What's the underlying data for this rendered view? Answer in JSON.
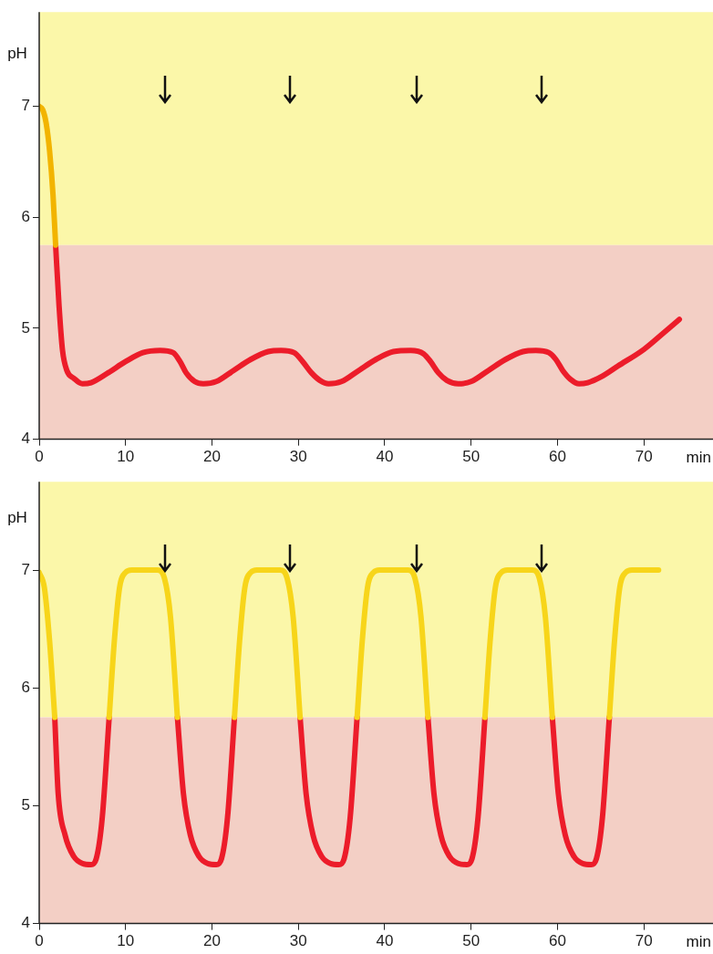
{
  "chart_data": [
    {
      "type": "line",
      "xlabel": "min",
      "ylabel": "pH",
      "xlim": [
        0,
        78
      ],
      "xticks": [
        0,
        10,
        20,
        30,
        40,
        50,
        60,
        70
      ],
      "ylim": [
        4,
        7.85
      ],
      "yticks": [
        4,
        5,
        6,
        7
      ],
      "grid": false,
      "legend": false,
      "marker": "none",
      "line_style": "solid",
      "bands": [
        {
          "axis": "y",
          "from": 5.75,
          "to": 7.85,
          "color": "#fbf7a9"
        },
        {
          "axis": "y",
          "from": 4,
          "to": 5.75,
          "color": "#f3cfc5"
        }
      ],
      "x": [
        0,
        0.4,
        0.8,
        1.2,
        1.6,
        1.9,
        2.3,
        2.7,
        3.2,
        4,
        5,
        6,
        8,
        10,
        12,
        14,
        15.5,
        16.3,
        17,
        18,
        19,
        20.5,
        22.5,
        24.5,
        26.5,
        28,
        29.5,
        30.5,
        31.5,
        32.5,
        33.5,
        35,
        37,
        39,
        41,
        43,
        44.5,
        45.3,
        46.2,
        47.2,
        48.5,
        50,
        52,
        54,
        56,
        57.5,
        59,
        59.8,
        60.6,
        61.5,
        62.5,
        63.5,
        65,
        67,
        70,
        72,
        74.1
      ],
      "series": [
        {
          "color": "#f2b400",
          "values": [
            7.0,
            6.97,
            6.85,
            6.6,
            6.2,
            5.75,
            null,
            null,
            null,
            null,
            null,
            null,
            null,
            null,
            null,
            null,
            null,
            null,
            null,
            null,
            null,
            null,
            null,
            null,
            null,
            null,
            null,
            null,
            null,
            null,
            null,
            null,
            null,
            null,
            null,
            null,
            null,
            null,
            null,
            null,
            null,
            null,
            null,
            null,
            null,
            null,
            null,
            null,
            null,
            null,
            null,
            null,
            null,
            null,
            null,
            null,
            null
          ]
        },
        {
          "color": "#ec1c2a",
          "values": [
            null,
            null,
            null,
            null,
            null,
            5.75,
            5.2,
            4.8,
            4.62,
            4.55,
            4.5,
            4.51,
            4.6,
            4.7,
            4.78,
            4.8,
            4.78,
            4.7,
            4.6,
            4.52,
            4.5,
            4.52,
            4.62,
            4.72,
            4.79,
            4.8,
            4.78,
            4.7,
            4.6,
            4.53,
            4.5,
            4.52,
            4.62,
            4.72,
            4.79,
            4.8,
            4.77,
            4.7,
            4.6,
            4.53,
            4.5,
            4.52,
            4.62,
            4.72,
            4.79,
            4.8,
            4.78,
            4.72,
            4.62,
            4.54,
            4.5,
            4.51,
            4.56,
            4.66,
            4.81,
            4.94,
            5.08
          ]
        }
      ]
    },
    {
      "type": "line",
      "xlabel": "min",
      "ylabel": "pH",
      "xlim": [
        0,
        78
      ],
      "xticks": [
        0,
        10,
        20,
        30,
        40,
        50,
        60,
        70
      ],
      "ylim": [
        4,
        7.75
      ],
      "yticks": [
        4,
        5,
        6,
        7
      ],
      "grid": false,
      "legend": false,
      "marker": "none",
      "line_style": "solid",
      "bands": [
        {
          "axis": "y",
          "from": 5.75,
          "to": 7.75,
          "color": "#fbf7a9"
        },
        {
          "axis": "y",
          "from": 4,
          "to": 5.75,
          "color": "#f3cfc5"
        }
      ],
      "x": [
        0,
        0.6,
        1.2,
        1.8,
        2.2,
        3,
        4,
        5,
        6,
        6.6,
        7.3,
        8.1,
        8.7,
        9.3,
        10,
        10.7,
        13.7,
        14.5,
        15.2,
        16,
        16.7,
        17.5,
        18.5,
        19.5,
        20.5,
        21.1,
        21.8,
        22.6,
        23.2,
        23.8,
        24.5,
        25.2,
        27.9,
        28.7,
        29.4,
        30.2,
        30.9,
        31.7,
        32.7,
        33.7,
        34.7,
        35.3,
        36,
        36.8,
        37.4,
        38,
        38.7,
        39.4,
        42.7,
        43.5,
        44.2,
        45,
        45.7,
        46.5,
        47.5,
        48.5,
        49.5,
        50.1,
        50.8,
        51.6,
        52.2,
        52.8,
        53.5,
        54.2,
        57.1,
        57.9,
        58.6,
        59.4,
        60.1,
        60.9,
        61.9,
        62.9,
        63.9,
        64.5,
        65.2,
        66,
        66.6,
        67.2,
        67.9,
        68.6,
        71.7
      ],
      "series": [
        {
          "color": "#f7d51a",
          "values": [
            6.98,
            6.85,
            6.4,
            5.75,
            null,
            null,
            null,
            null,
            null,
            null,
            null,
            5.75,
            6.4,
            6.85,
            6.98,
            7.0,
            7.0,
            6.93,
            6.6,
            5.75,
            null,
            null,
            null,
            null,
            null,
            null,
            null,
            5.75,
            6.4,
            6.85,
            6.98,
            7.0,
            7.0,
            6.93,
            6.6,
            5.75,
            null,
            null,
            null,
            null,
            null,
            null,
            null,
            5.75,
            6.4,
            6.85,
            6.98,
            7.0,
            7.0,
            6.93,
            6.6,
            5.75,
            null,
            null,
            null,
            null,
            null,
            null,
            null,
            5.75,
            6.4,
            6.85,
            6.98,
            7.0,
            7.0,
            6.93,
            6.6,
            5.75,
            null,
            null,
            null,
            null,
            null,
            null,
            null,
            5.75,
            6.4,
            6.85,
            6.98,
            7.0,
            7.0
          ]
        },
        {
          "color": "#ec1c2a",
          "values": [
            null,
            null,
            null,
            5.75,
            5.1,
            4.75,
            4.57,
            4.51,
            4.5,
            4.55,
            4.9,
            5.75,
            null,
            null,
            null,
            null,
            null,
            null,
            null,
            5.75,
            5.1,
            4.75,
            4.57,
            4.51,
            4.5,
            4.55,
            4.9,
            5.75,
            null,
            null,
            null,
            null,
            null,
            null,
            null,
            5.75,
            5.1,
            4.75,
            4.57,
            4.51,
            4.5,
            4.55,
            4.9,
            5.75,
            null,
            null,
            null,
            null,
            null,
            null,
            null,
            5.75,
            5.1,
            4.75,
            4.57,
            4.51,
            4.5,
            4.55,
            4.9,
            5.75,
            null,
            null,
            null,
            null,
            null,
            null,
            null,
            5.75,
            5.1,
            4.75,
            4.57,
            4.51,
            4.5,
            4.55,
            4.9,
            5.75,
            null,
            null,
            null,
            null,
            null
          ]
        }
      ]
    }
  ]
}
